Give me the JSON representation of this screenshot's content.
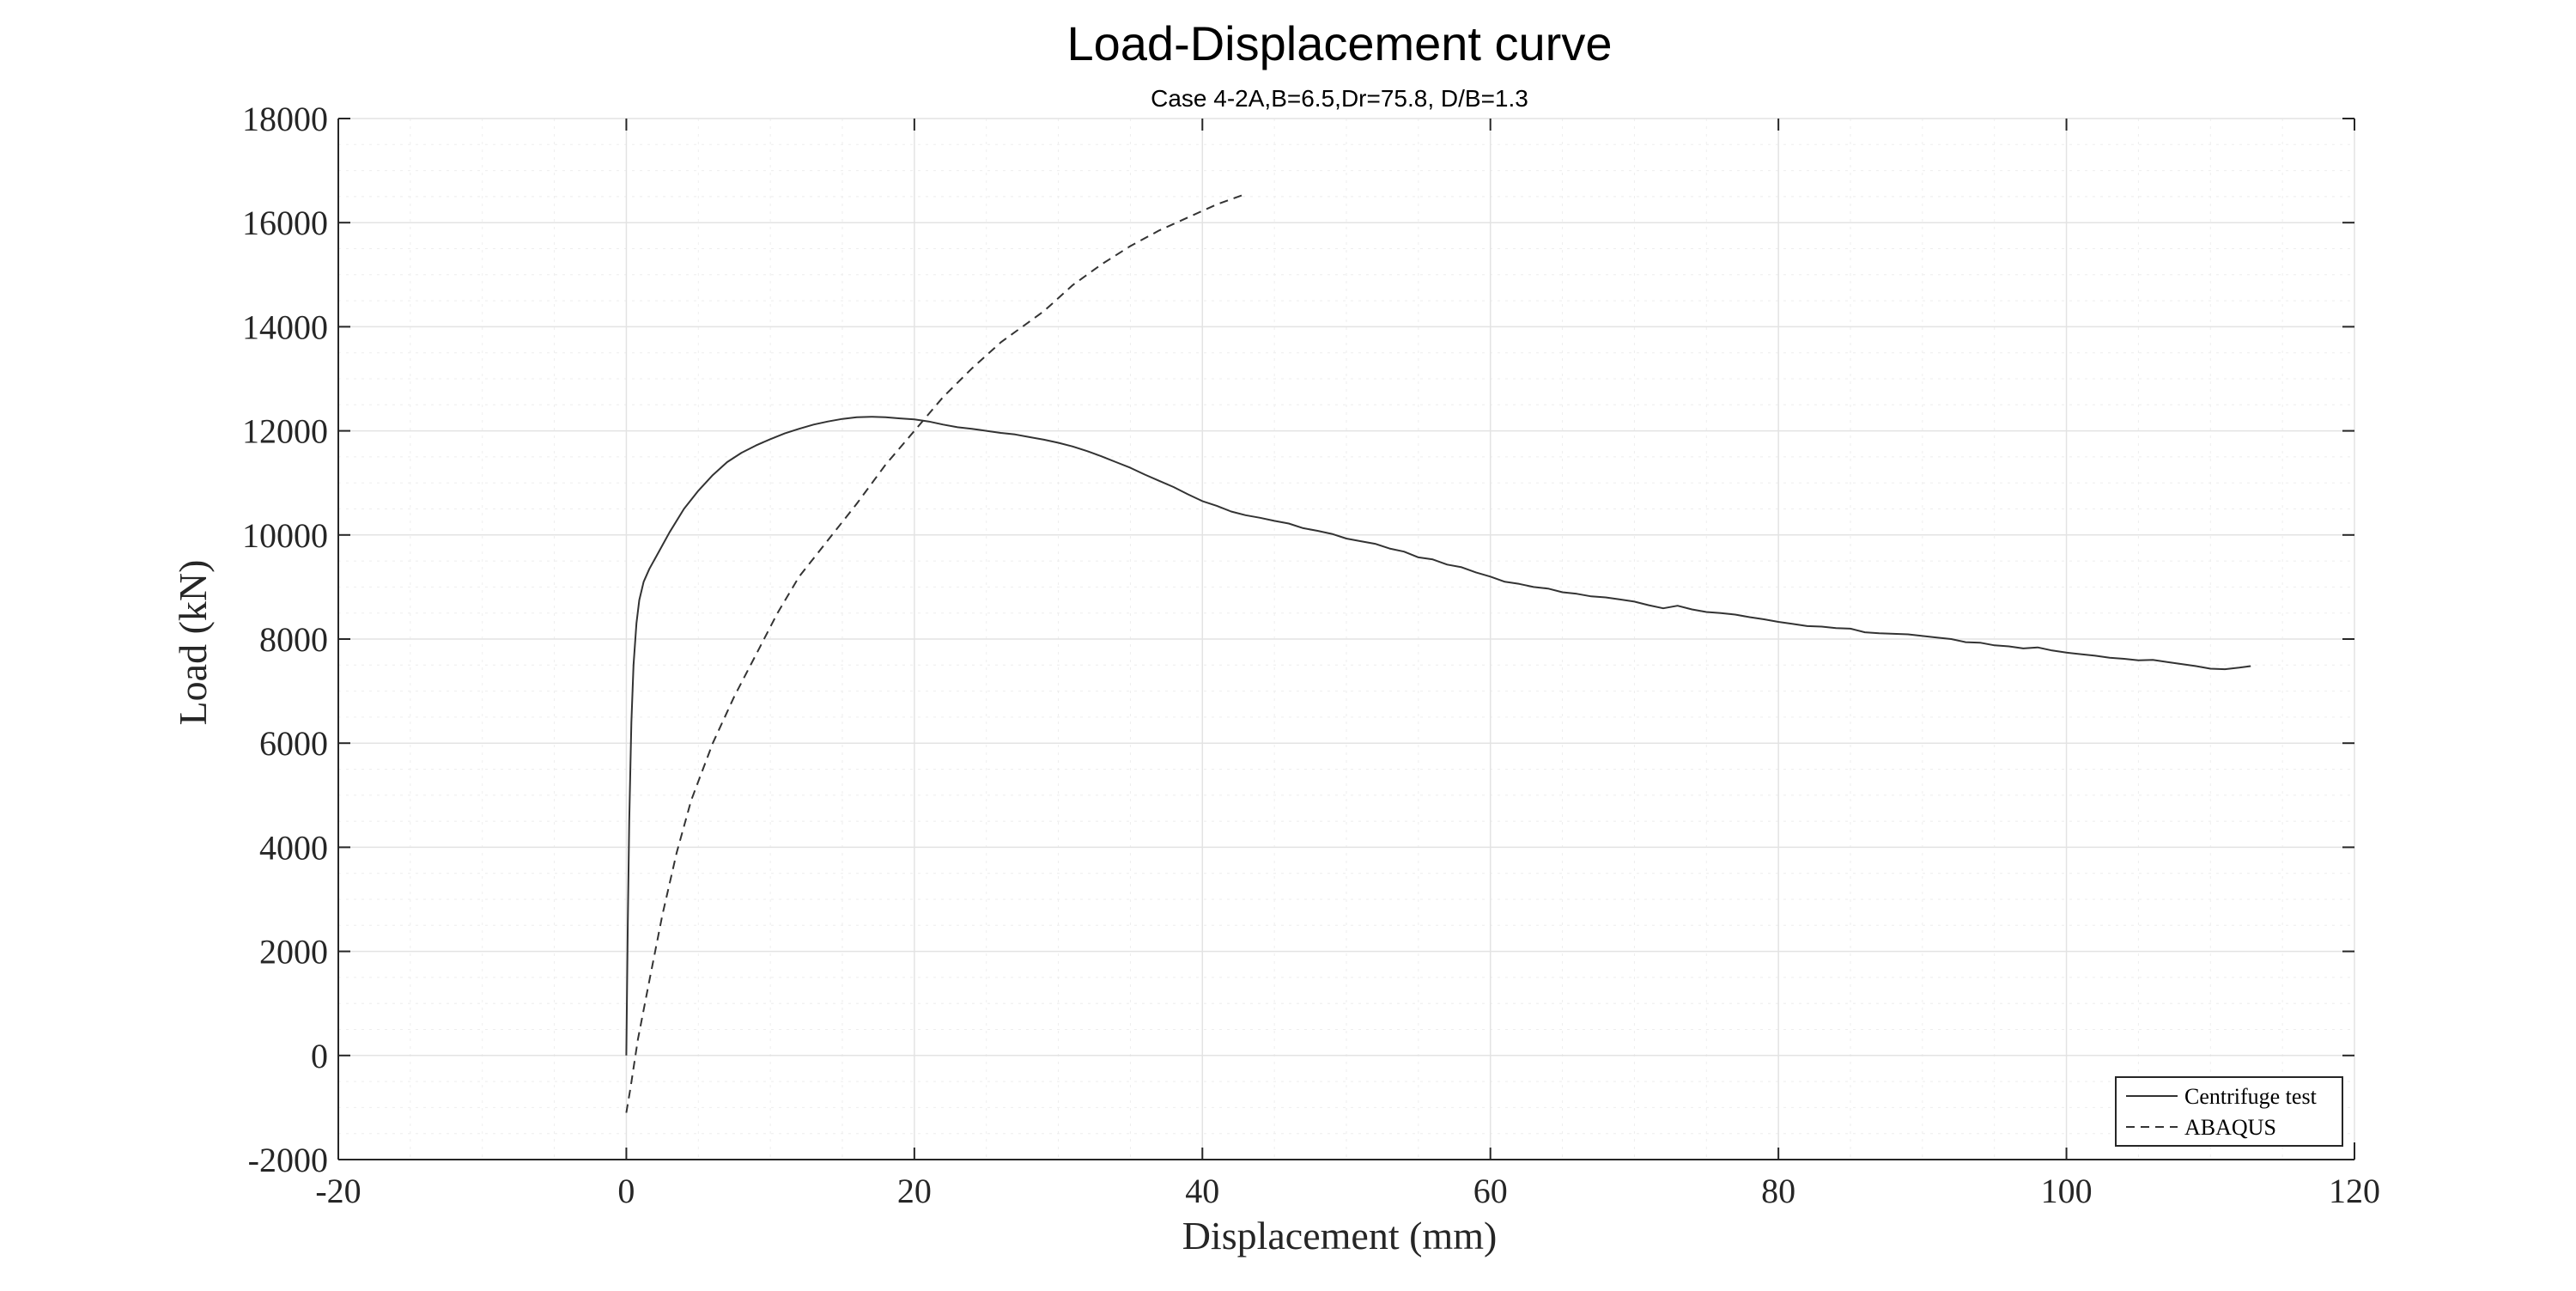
{
  "chart_data": {
    "type": "line",
    "title": "Load-Displacement curve",
    "subtitle": "Case 4-2A,B=6.5,Dr=75.8, D/B=1.3",
    "xlabel": "Displacement (mm)",
    "ylabel": "Load (kN)",
    "xlim": [
      -20,
      120
    ],
    "ylim": [
      -2000,
      18000
    ],
    "xticks": [
      -20,
      0,
      20,
      40,
      60,
      80,
      100,
      120
    ],
    "yticks": [
      -2000,
      0,
      2000,
      4000,
      6000,
      8000,
      10000,
      12000,
      14000,
      16000,
      18000
    ],
    "grid": true,
    "minor_grid": true,
    "legend_position": "bottom-right",
    "series": [
      {
        "name": "Centrifuge test",
        "style": "solid",
        "color": "#333333",
        "x": [
          0,
          0.1,
          0.2,
          0.35,
          0.5,
          0.7,
          0.9,
          1.2,
          1.6,
          2,
          2.5,
          3,
          4,
          5,
          6,
          7,
          8,
          9,
          10,
          11,
          12,
          13,
          14,
          15,
          16,
          17,
          18,
          19,
          20,
          21,
          22,
          23,
          24,
          25,
          26,
          27,
          28,
          29,
          30,
          31,
          32,
          33,
          34,
          35,
          36,
          37,
          38,
          39,
          40,
          41,
          42,
          43,
          44,
          45,
          46,
          47,
          48,
          49,
          50,
          51,
          52,
          53,
          54,
          55,
          56,
          57,
          58,
          59,
          60,
          61,
          62,
          63,
          64,
          65,
          66,
          67,
          68,
          69,
          70,
          71,
          72,
          73,
          74,
          75,
          76,
          77,
          78,
          79,
          80,
          81,
          82,
          83,
          84,
          85,
          86,
          87,
          88,
          89,
          90,
          91,
          92,
          93,
          94,
          95,
          96,
          97,
          98,
          99,
          100,
          101,
          102,
          103,
          104,
          105,
          106,
          107,
          108,
          109,
          110,
          111,
          112,
          112.8
        ],
        "y": [
          0,
          2500,
          4500,
          6400,
          7500,
          8300,
          8750,
          9100,
          9350,
          9550,
          9800,
          10050,
          10500,
          10850,
          11150,
          11400,
          11580,
          11720,
          11840,
          11950,
          12040,
          12120,
          12180,
          12230,
          12260,
          12270,
          12260,
          12240,
          12220,
          12180,
          12120,
          12070,
          12040,
          12000,
          11960,
          11930,
          11880,
          11830,
          11770,
          11700,
          11610,
          11510,
          11400,
          11290,
          11160,
          11040,
          10920,
          10780,
          10650,
          10560,
          10450,
          10380,
          10330,
          10270,
          10220,
          10130,
          10080,
          10020,
          9930,
          9880,
          9830,
          9740,
          9680,
          9570,
          9530,
          9430,
          9380,
          9280,
          9200,
          9100,
          9060,
          9000,
          8970,
          8900,
          8870,
          8820,
          8800,
          8760,
          8720,
          8650,
          8590,
          8640,
          8570,
          8520,
          8500,
          8470,
          8420,
          8380,
          8330,
          8290,
          8250,
          8240,
          8210,
          8200,
          8130,
          8110,
          8100,
          8090,
          8060,
          8030,
          8000,
          7940,
          7930,
          7880,
          7860,
          7820,
          7840,
          7780,
          7740,
          7710,
          7680,
          7640,
          7620,
          7590,
          7600,
          7560,
          7520,
          7480,
          7430,
          7420,
          7450,
          7480
        ]
      },
      {
        "name": "ABAQUS",
        "style": "dashed",
        "color": "#333333",
        "x": [
          0,
          0.3,
          0.8,
          1.5,
          2.5,
          3.5,
          4.5,
          6,
          7.5,
          9,
          10.5,
          12,
          14,
          16,
          18,
          20,
          22,
          24,
          26,
          27.5,
          29,
          31,
          33,
          35,
          37,
          39,
          41,
          43
        ],
        "y": [
          -1100,
          -600,
          300,
          1300,
          2700,
          3900,
          4900,
          6000,
          6900,
          7700,
          8500,
          9200,
          9900,
          10600,
          11350,
          12000,
          12650,
          13200,
          13700,
          14000,
          14300,
          14800,
          15200,
          15550,
          15850,
          16100,
          16350,
          16550
        ]
      }
    ]
  }
}
